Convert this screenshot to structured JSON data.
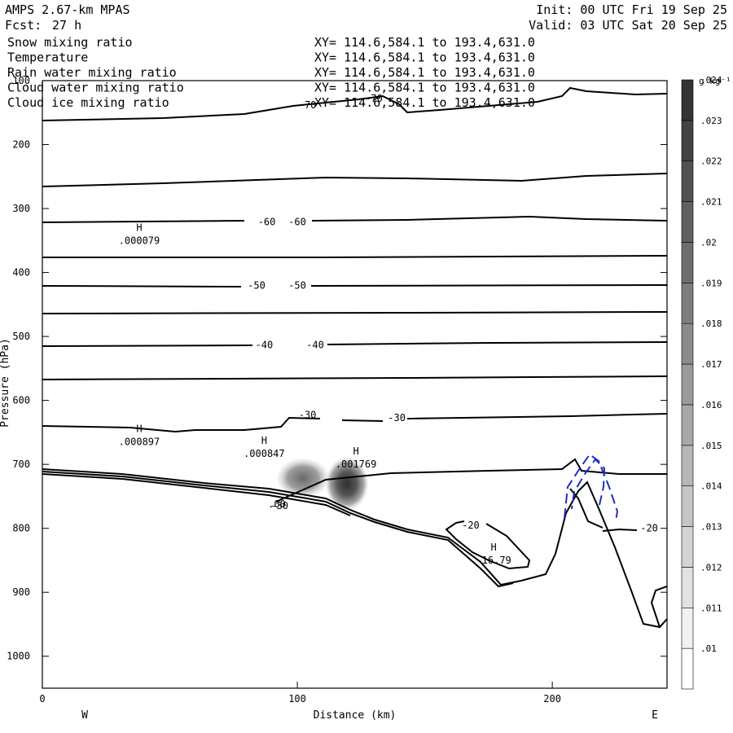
{
  "header": {
    "model": "AMPS 2.67-km MPAS",
    "fcst_label": "Fcst:",
    "fcst_value": "27 h",
    "init": "Init: 00 UTC Fri 19 Sep 25",
    "valid": "Valid: 03 UTC Sat 20 Sep 25"
  },
  "colors": {
    "rain": "#e0201a",
    "cloud_water": "#1f2dc8",
    "contour": "#000000",
    "shade_dark": "#3a3a3a"
  },
  "chart_data": {
    "type": "contour-cross-section",
    "fields": [
      {
        "name": "Snow mixing ratio",
        "xy": "XY= 114.6,584.1 to 193.4,631.0",
        "color": "#000000"
      },
      {
        "name": "Temperature",
        "xy": "XY= 114.6,584.1 to 193.4,631.0",
        "color": "#000000"
      },
      {
        "name": "Rain water mixing ratio",
        "xy": "XY= 114.6,584.1 to 193.4,631.0",
        "color": "#e0201a"
      },
      {
        "name": "Cloud water mixing ratio",
        "xy": "XY= 114.6,584.1 to 193.4,631.0",
        "color": "#1f2dc8"
      },
      {
        "name": "Cloud ice mixing ratio",
        "xy": "XY= 114.6,584.1 to 193.4,631.0",
        "color": "#000000"
      }
    ],
    "xlabel": "Distance (km)",
    "ylabel": "Pressure (hPa)",
    "xlim": [
      0,
      245
    ],
    "ylim": [
      100,
      1050
    ],
    "x_ticks": [
      0,
      100,
      200
    ],
    "y_ticks": [
      100,
      200,
      300,
      400,
      500,
      600,
      700,
      800,
      900,
      1000
    ],
    "x_end_labels": {
      "left": "W",
      "right": "E"
    },
    "colorbar": {
      "unit": "g kg⁻¹",
      "ticks": [
        ".01",
        ".011",
        ".012",
        ".013",
        ".014",
        ".015",
        ".016",
        ".017",
        ".018",
        ".019",
        ".02",
        ".021",
        ".022",
        ".023",
        ".024"
      ]
    },
    "contour_labels": [
      {
        "text": "-70",
        "x": 104,
        "p": 138
      },
      {
        "text": "-70",
        "x": 130,
        "p": 128
      },
      {
        "text": "-60",
        "x": 88,
        "p": 321
      },
      {
        "text": "-60",
        "x": 100,
        "p": 321
      },
      {
        "text": "-50",
        "x": 84,
        "p": 420
      },
      {
        "text": "-50",
        "x": 100,
        "p": 420
      },
      {
        "text": "-40",
        "x": 87,
        "p": 513
      },
      {
        "text": "-40",
        "x": 107,
        "p": 513
      },
      {
        "text": "-30",
        "x": 104,
        "p": 623
      },
      {
        "text": "-30",
        "x": 139,
        "p": 627
      },
      {
        "text": "-30",
        "x": 93,
        "p": 765
      },
      {
        "text": "-20",
        "x": 168,
        "p": 795
      },
      {
        "text": "-20",
        "x": 238,
        "p": 800
      }
    ],
    "highs": [
      {
        "mark": "H",
        "value": ".000079",
        "x": 38,
        "p": 350
      },
      {
        "mark": "H",
        "value": ".000897",
        "x": 38,
        "p": 665
      },
      {
        "mark": "H",
        "value": ".000847",
        "x": 87,
        "p": 683
      },
      {
        "mark": "H",
        "value": ".001769",
        "x": 123,
        "p": 700
      },
      {
        "mark": "H",
        "value": "-16.79",
        "x": 177,
        "p": 850
      }
    ],
    "partial_label": {
      "text": ".00",
      "x": 92,
      "p": 762
    }
  }
}
